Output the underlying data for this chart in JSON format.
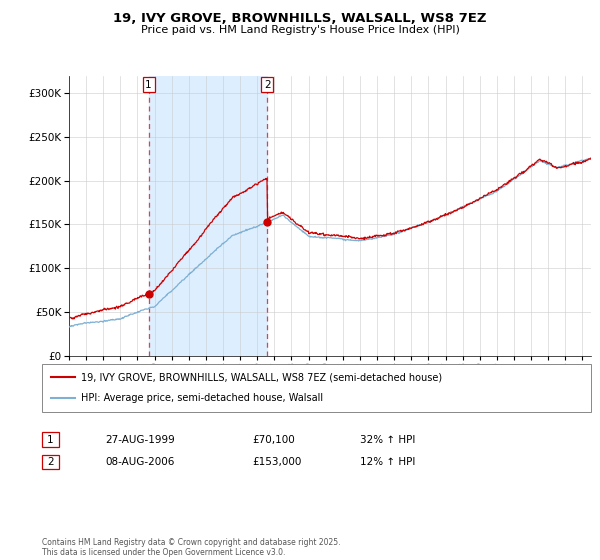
{
  "title": "19, IVY GROVE, BROWNHILLS, WALSALL, WS8 7EZ",
  "subtitle": "Price paid vs. HM Land Registry's House Price Index (HPI)",
  "legend_label_red": "19, IVY GROVE, BROWNHILLS, WALSALL, WS8 7EZ (semi-detached house)",
  "legend_label_blue": "HPI: Average price, semi-detached house, Walsall",
  "purchase1_date": "27-AUG-1999",
  "purchase1_price": "£70,100",
  "purchase1_hpi": "32% ↑ HPI",
  "purchase2_date": "08-AUG-2006",
  "purchase2_price": "£153,000",
  "purchase2_hpi": "12% ↑ HPI",
  "footer": "Contains HM Land Registry data © Crown copyright and database right 2025.\nThis data is licensed under the Open Government Licence v3.0.",
  "red_color": "#cc0000",
  "blue_color": "#7eb0d4",
  "shaded_region_color": "#ddeeff",
  "dashed_line_color": "#dd4444",
  "ylim": [
    0,
    320000
  ],
  "yticks": [
    0,
    50000,
    100000,
    150000,
    200000,
    250000,
    300000
  ],
  "p1_year": 1999.65,
  "p2_year": 2006.58,
  "p1_price": 70100,
  "p2_price": 153000
}
